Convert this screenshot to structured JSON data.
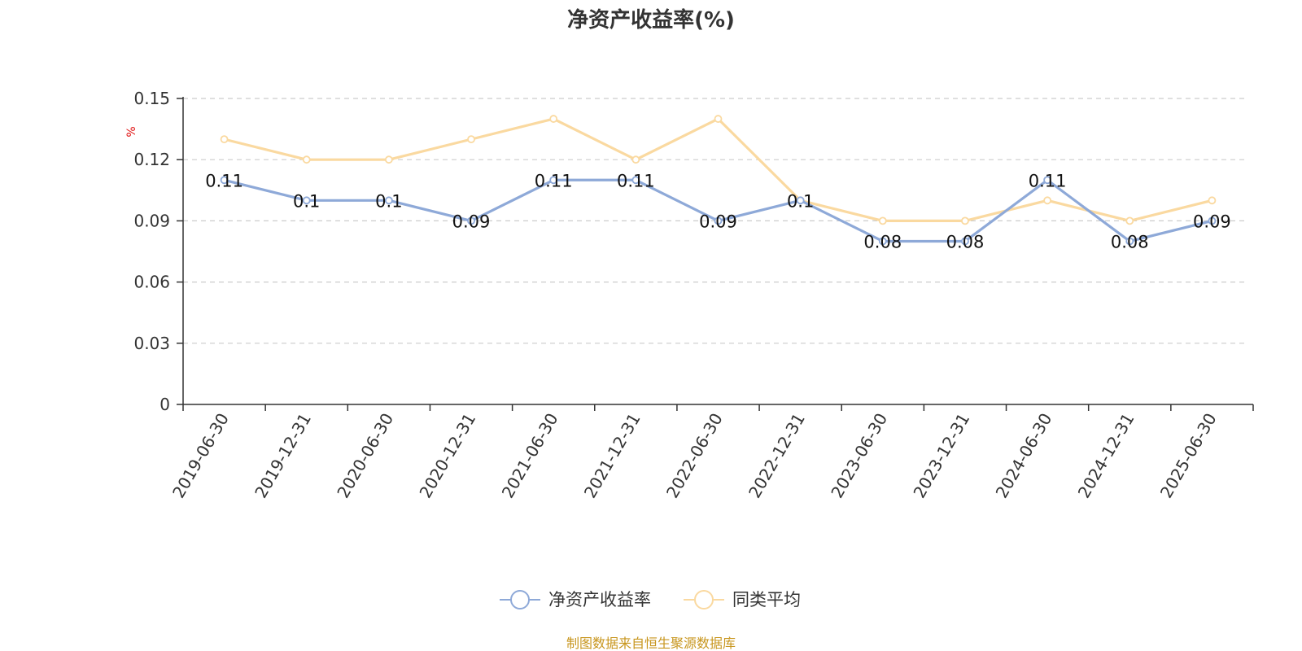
{
  "chart_data": {
    "type": "line",
    "title": "净资产收益率(%)",
    "ylabel": "%",
    "xlabel": "",
    "ylim": [
      0,
      0.15
    ],
    "yticks": [
      "0",
      "0.03",
      "0.06",
      "0.09",
      "0.12",
      "0.15"
    ],
    "grid": true,
    "legend_position": "bottom",
    "categories": [
      "2019-06-30",
      "2019-12-31",
      "2020-06-30",
      "2020-12-31",
      "2021-06-30",
      "2021-12-31",
      "2022-06-30",
      "2022-12-31",
      "2023-06-30",
      "2023-12-31",
      "2024-06-30",
      "2024-12-31",
      "2025-06-30"
    ],
    "series": [
      {
        "name": "净资产收益率",
        "color": "#8ea9d8",
        "values": [
          0.11,
          0.1,
          0.1,
          0.09,
          0.11,
          0.11,
          0.09,
          0.1,
          0.08,
          0.08,
          0.11,
          0.08,
          0.09
        ],
        "data_labels": [
          "0.11",
          "0.1",
          "0.1",
          "0.09",
          "0.11",
          "0.11",
          "0.09",
          "0.1",
          "0.08",
          "0.08",
          "0.11",
          "0.08",
          "0.09"
        ]
      },
      {
        "name": "同类平均",
        "color": "#fad9a0",
        "values": [
          0.13,
          0.12,
          0.12,
          0.13,
          0.14,
          0.12,
          0.14,
          0.1,
          0.09,
          0.09,
          0.1,
          0.09,
          0.1
        ]
      }
    ],
    "source_note": "制图数据来自恒生聚源数据库"
  }
}
